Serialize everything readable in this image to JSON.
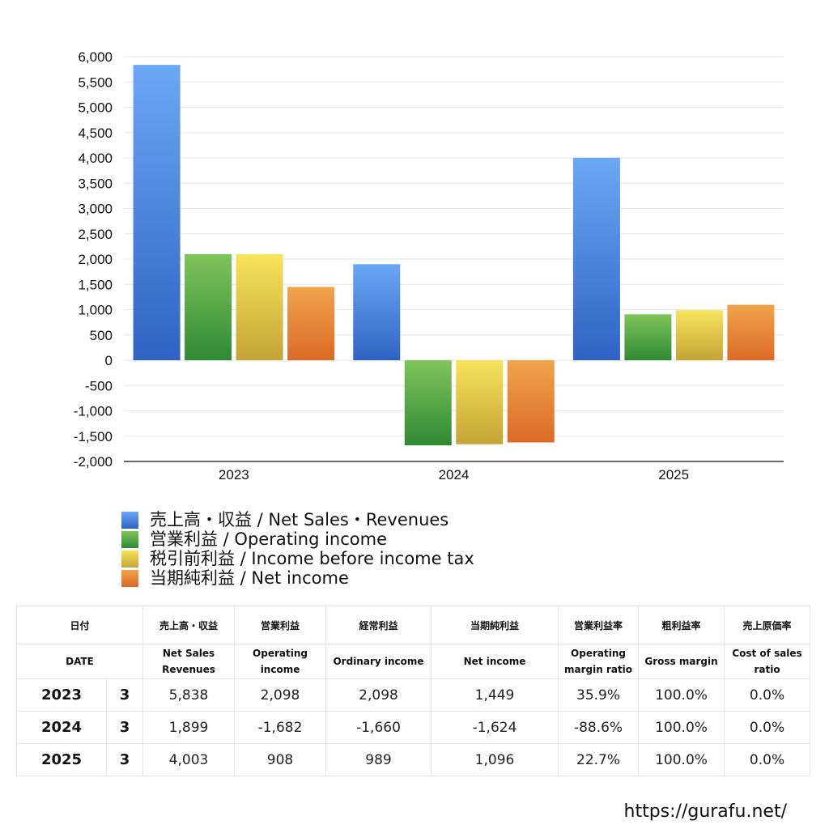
{
  "chart_data": {
    "type": "bar",
    "categories": [
      "2023",
      "2024",
      "2025"
    ],
    "series": [
      {
        "name": "売上高・収益 / Net Sales・Revenues",
        "values": [
          5838,
          1899,
          4003
        ],
        "color_top": "#6aa8f5",
        "color_bottom": "#2f63c4"
      },
      {
        "name": "営業利益 / Operating income",
        "values": [
          2098,
          -1682,
          908
        ],
        "color_top": "#7fc45a",
        "color_bottom": "#2f8a34"
      },
      {
        "name": "税引前利益 / Income before income tax",
        "values": [
          2098,
          -1660,
          989
        ],
        "color_top": "#f6e45a",
        "color_bottom": "#c4a436"
      },
      {
        "name": "当期純利益 / Net income",
        "values": [
          1449,
          -1624,
          1096
        ],
        "color_top": "#f0a44a",
        "color_bottom": "#dc6a26"
      }
    ],
    "ylim": [
      -2000,
      6000
    ],
    "yticks": [
      6000,
      5500,
      5000,
      4500,
      4000,
      3500,
      3000,
      2500,
      2000,
      1500,
      1000,
      500,
      0,
      -500,
      -1000,
      -1500,
      -2000
    ],
    "ytick_labels": [
      "6,000",
      "5,500",
      "5,000",
      "4,500",
      "4,000",
      "3,500",
      "3,000",
      "2,500",
      "2,000",
      "1,500",
      "1,000",
      "500",
      "0",
      "-500",
      "-1,000",
      "-1,500",
      "-2,000"
    ],
    "grid": true,
    "legend_position": "bottom"
  },
  "table": {
    "header_jp": [
      "日付",
      "売上高・収益",
      "営業利益",
      "経常利益",
      "当期純利益",
      "営業利益率",
      "粗利益率",
      "売上原価率"
    ],
    "header_en": {
      "date": "DATE",
      "net_sales_1": "Net Sales",
      "net_sales_2": "Revenues",
      "operating_1": "Operating",
      "operating_2": "income",
      "ordinary": "Ordinary income",
      "net_income": "Net income",
      "op_margin_1": "Operating",
      "op_margin_2": "margin ratio",
      "gross_margin": "Gross margin",
      "cost_1": "Cost of sales",
      "cost_2": "ratio"
    },
    "rows": [
      {
        "year": "2023",
        "month": "3",
        "net_sales": "5,838",
        "operating_income": "2,098",
        "ordinary_income": "2,098",
        "net_income": "1,449",
        "operating_margin": "35.9%",
        "gross_margin": "100.0%",
        "cost_ratio": "0.0%"
      },
      {
        "year": "2024",
        "month": "3",
        "net_sales": "1,899",
        "operating_income": "-1,682",
        "ordinary_income": "-1,660",
        "net_income": "-1,624",
        "operating_margin": "-88.6%",
        "gross_margin": "100.0%",
        "cost_ratio": "0.0%"
      },
      {
        "year": "2025",
        "month": "3",
        "net_sales": "4,003",
        "operating_income": "908",
        "ordinary_income": "989",
        "net_income": "1,096",
        "operating_margin": "22.7%",
        "gross_margin": "100.0%",
        "cost_ratio": "0.0%"
      }
    ],
    "negative_color": "#e0442a"
  },
  "site_url": "https://gurafu.net/"
}
